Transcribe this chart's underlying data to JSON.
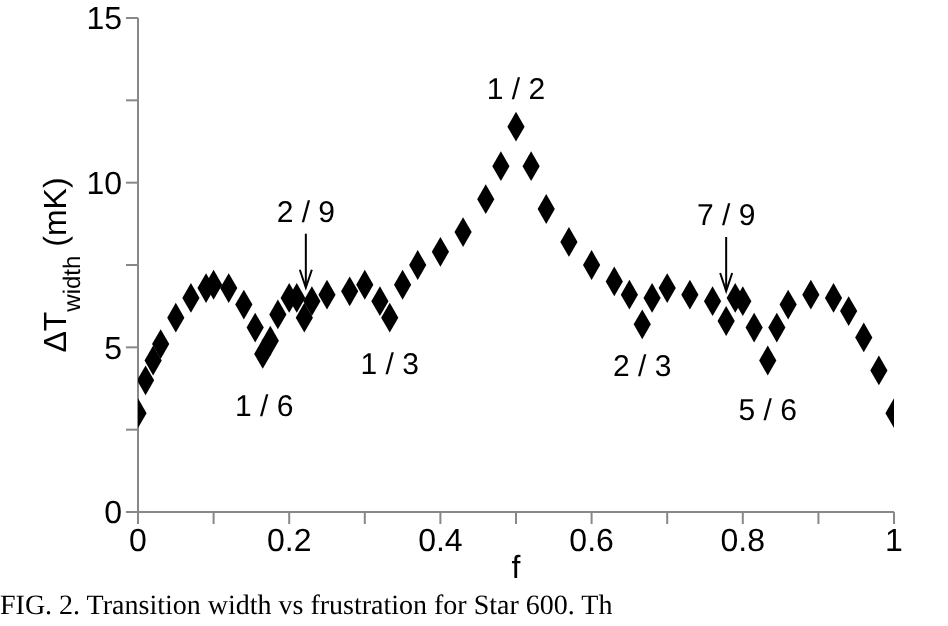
{
  "chart_data": {
    "type": "scatter",
    "xlabel": "f",
    "ylabel": "ΔT$_{width}$ (mK)",
    "xlim": [
      0,
      1
    ],
    "ylim": [
      0,
      15
    ],
    "xticks": [
      0,
      {
        "value": 0.1,
        "label": null
      },
      0.2,
      {
        "value": 0.3,
        "label": null
      },
      0.4,
      {
        "value": 0.5,
        "label": null
      },
      0.6,
      {
        "value": 0.7,
        "label": null
      },
      0.8,
      {
        "value": 0.9,
        "label": null
      },
      1
    ],
    "yticks": [
      0,
      {
        "value": 2.5,
        "label": null
      },
      5,
      {
        "value": 7.5,
        "label": null
      },
      10,
      {
        "value": 12.5,
        "label": null
      },
      15
    ],
    "grid": false,
    "marker": "diamond",
    "series": [
      {
        "color": "#000000",
        "x": [
          0,
          0.01,
          0.02,
          0.03,
          0.05,
          0.07,
          0.09,
          0.1,
          0.12,
          0.14,
          0.155,
          0.165,
          0.175,
          0.185,
          0.2,
          0.21,
          0.22,
          0.23,
          0.25,
          0.28,
          0.3,
          0.32,
          0.333,
          0.35,
          0.37,
          0.4,
          0.43,
          0.46,
          0.48,
          0.5,
          0.52,
          0.54,
          0.57,
          0.6,
          0.63,
          0.65,
          0.667,
          0.68,
          0.7,
          0.73,
          0.76,
          0.778,
          0.79,
          0.8,
          0.815,
          0.833,
          0.845,
          0.86,
          0.89,
          0.92,
          0.94,
          0.96,
          0.98,
          1
        ],
        "values": [
          3.0,
          4.0,
          4.6,
          5.1,
          5.9,
          6.5,
          6.8,
          6.9,
          6.8,
          6.3,
          5.6,
          4.8,
          5.2,
          6.0,
          6.5,
          6.5,
          5.9,
          6.4,
          6.6,
          6.7,
          6.9,
          6.4,
          5.9,
          6.9,
          7.5,
          7.9,
          8.5,
          9.5,
          10.5,
          11.7,
          10.5,
          9.2,
          8.2,
          7.5,
          7.0,
          6.6,
          5.7,
          6.5,
          6.8,
          6.6,
          6.4,
          5.8,
          6.5,
          6.4,
          5.6,
          4.6,
          5.6,
          6.3,
          6.6,
          6.5,
          6.1,
          5.3,
          4.3,
          3.0
        ]
      }
    ],
    "annotations": [
      {
        "text": "1 / 2",
        "x": 0.5,
        "y": 11.7
      },
      {
        "text": "2 / 9",
        "x": 0.222,
        "y": 5.9
      },
      {
        "text": "7 / 9",
        "x": 0.778,
        "y": 5.8
      },
      {
        "text": "1 / 6",
        "x": 0.167,
        "y": 4.8
      },
      {
        "text": "1 / 3",
        "x": 0.333,
        "y": 5.9
      },
      {
        "text": "2 / 3",
        "x": 0.667,
        "y": 5.7
      },
      {
        "text": "5 / 6",
        "x": 0.833,
        "y": 4.6
      },
      "FIG. 2. Transition width vs frustration for Star 600. Th"
    ]
  }
}
